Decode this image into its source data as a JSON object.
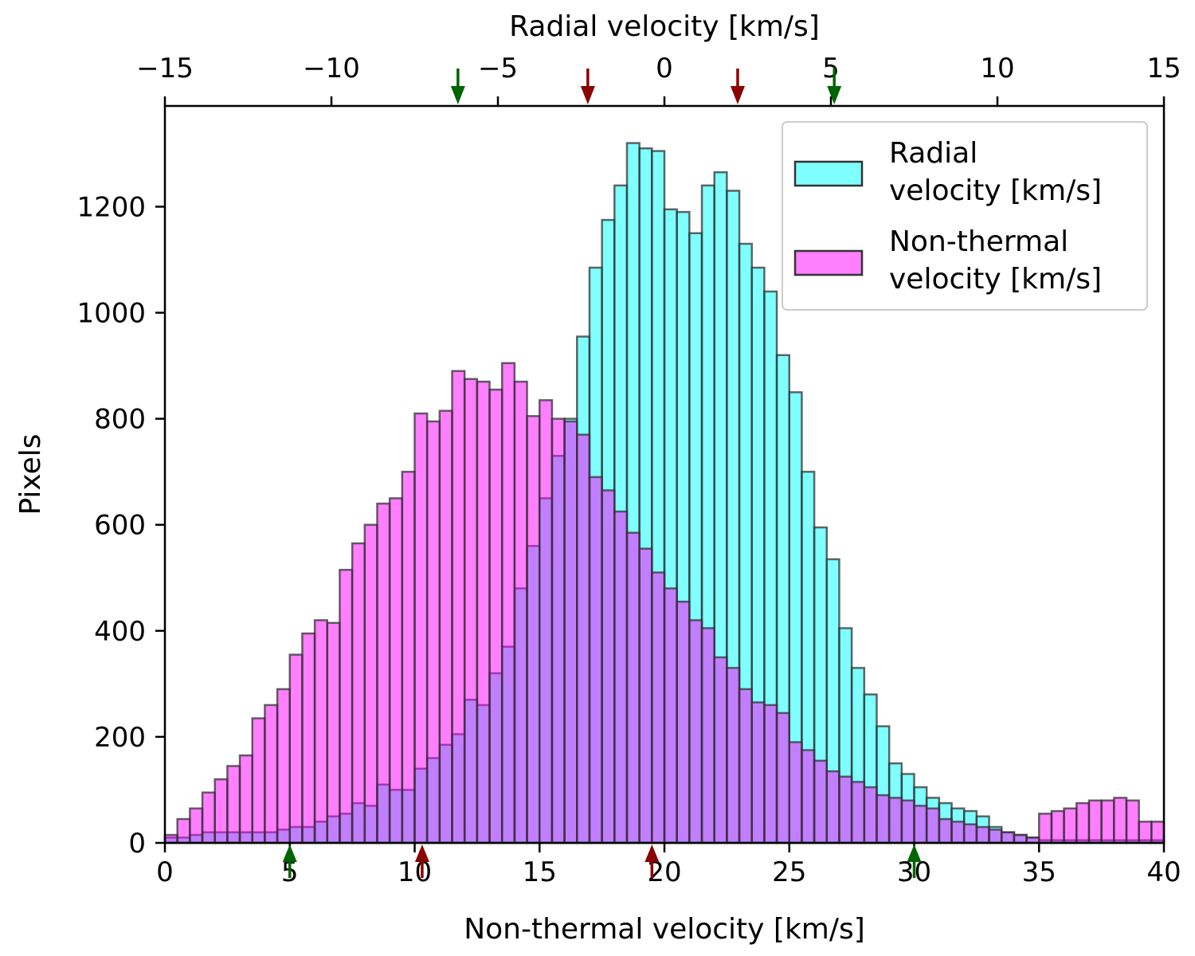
{
  "chart_data": {
    "type": "histogram",
    "xlabel_bottom": "Non-thermal velocity [km/s]",
    "xlabel_top": "Radial velocity [km/s]",
    "ylabel": "Pixels",
    "bottom_axis": {
      "range": [
        0,
        40
      ],
      "ticks": [
        0,
        5,
        10,
        15,
        20,
        25,
        30,
        35,
        40
      ],
      "tick_labels": [
        "0",
        "5",
        "10",
        "15",
        "20",
        "25",
        "30",
        "35",
        "40"
      ]
    },
    "top_axis": {
      "range": [
        -15,
        15
      ],
      "ticks": [
        -15,
        -10,
        -5,
        0,
        5,
        10,
        15
      ],
      "tick_labels": [
        "−15",
        "−10",
        "−5",
        "0",
        "5",
        "10",
        "15"
      ]
    },
    "y_axis": {
      "range": [
        0,
        1390
      ],
      "ticks": [
        0,
        200,
        400,
        600,
        800,
        1000,
        1200
      ],
      "tick_labels": [
        "0",
        "200",
        "400",
        "600",
        "800",
        "1000",
        "1200"
      ]
    },
    "legend": {
      "placement": "upper-right",
      "entries": [
        {
          "lines": [
            "Radial",
            "velocity [km/s]"
          ],
          "color": "#00ffff"
        },
        {
          "lines": [
            "Non-thermal",
            "velocity [km/s]"
          ],
          "color": "#ff00ff"
        }
      ]
    },
    "colors": {
      "radial": "#00ffff",
      "nonthermal": "#ff00ff",
      "edge": "#333333",
      "green_arrow": "#006400",
      "red_arrow": "#8b0000"
    },
    "series": [
      {
        "name": "Radial velocity [km/s]",
        "axis": "top",
        "bin_start": -15,
        "bin_width": 0.375,
        "values": [
          10,
          10,
          15,
          20,
          20,
          20,
          20,
          20,
          20,
          25,
          30,
          30,
          40,
          50,
          55,
          75,
          70,
          110,
          100,
          100,
          140,
          160,
          185,
          205,
          270,
          260,
          320,
          370,
          480,
          560,
          650,
          730,
          800,
          955,
          1085,
          1175,
          1240,
          1320,
          1310,
          1305,
          1195,
          1190,
          1150,
          1240,
          1265,
          1230,
          1130,
          1085,
          1040,
          920,
          850,
          700,
          595,
          535,
          405,
          330,
          280,
          220,
          150,
          130,
          105,
          85,
          75,
          65,
          60,
          50,
          30,
          20,
          15,
          10,
          5,
          5,
          5,
          5,
          5,
          5,
          5,
          5,
          5,
          5
        ]
      },
      {
        "name": "Non-thermal velocity [km/s]",
        "axis": "bottom",
        "bin_start": 0,
        "bin_width": 0.5,
        "values": [
          15,
          45,
          65,
          95,
          120,
          145,
          165,
          235,
          260,
          290,
          355,
          395,
          420,
          415,
          515,
          565,
          600,
          640,
          650,
          700,
          810,
          795,
          815,
          890,
          875,
          870,
          855,
          905,
          870,
          805,
          835,
          800,
          795,
          770,
          690,
          665,
          625,
          585,
          555,
          510,
          480,
          455,
          420,
          405,
          350,
          330,
          290,
          265,
          260,
          245,
          190,
          175,
          155,
          135,
          125,
          115,
          105,
          90,
          85,
          80,
          70,
          65,
          45,
          40,
          35,
          30,
          25,
          20,
          15,
          10,
          55,
          60,
          65,
          75,
          80,
          80,
          85,
          80,
          40,
          40
        ]
      }
    ],
    "arrows": {
      "bottom": [
        {
          "x": 5.0,
          "color": "green"
        },
        {
          "x": 10.3,
          "color": "red"
        },
        {
          "x": 19.5,
          "color": "red"
        },
        {
          "x": 30.0,
          "color": "green"
        }
      ],
      "top": [
        {
          "x": -6.2,
          "color": "green"
        },
        {
          "x": -2.3,
          "color": "red"
        },
        {
          "x": 2.2,
          "color": "red"
        },
        {
          "x": 5.1,
          "color": "green"
        }
      ]
    }
  }
}
